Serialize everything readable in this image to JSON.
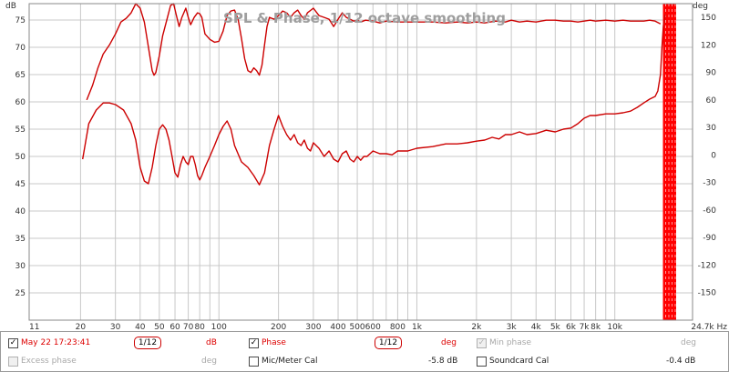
{
  "chart_data": {
    "type": "line",
    "title": "SPL & Phase, 1/12 octave smoothing",
    "y_unit_left": "dB",
    "y_unit_right": "deg",
    "x_unit": "Hz",
    "x_scale": "log",
    "xlim": [
      11,
      24700
    ],
    "ylim_left": [
      20,
      78
    ],
    "ylim_right": [
      -180,
      165
    ],
    "grid": true,
    "x_ticks": [
      {
        "v": 11,
        "label": "11"
      },
      {
        "v": 20,
        "label": "20"
      },
      {
        "v": 30,
        "label": "30"
      },
      {
        "v": 40,
        "label": "40"
      },
      {
        "v": 50,
        "label": "50"
      },
      {
        "v": 60,
        "label": "60"
      },
      {
        "v": 70,
        "label": "70"
      },
      {
        "v": 80,
        "label": "80"
      },
      {
        "v": 100,
        "label": "100"
      },
      {
        "v": 200,
        "label": "200"
      },
      {
        "v": 300,
        "label": "300"
      },
      {
        "v": 400,
        "label": "400"
      },
      {
        "v": 500,
        "label": "500"
      },
      {
        "v": 600,
        "label": "600"
      },
      {
        "v": 800,
        "label": "800"
      },
      {
        "v": 1000,
        "label": "1k"
      },
      {
        "v": 2000,
        "label": "2k"
      },
      {
        "v": 3000,
        "label": "3k"
      },
      {
        "v": 4000,
        "label": "4k"
      },
      {
        "v": 5000,
        "label": "5k"
      },
      {
        "v": 6000,
        "label": "6k"
      },
      {
        "v": 7000,
        "label": "7k"
      },
      {
        "v": 8000,
        "label": "8k"
      },
      {
        "v": 10000,
        "label": "10k"
      },
      {
        "v": 24700,
        "label": "24.7k Hz"
      }
    ],
    "y_ticks_left": [
      75,
      70,
      65,
      60,
      55,
      50,
      45,
      40,
      35,
      30,
      25
    ],
    "y_ticks_right": [
      150,
      120,
      90,
      60,
      30,
      0,
      -30,
      -60,
      -90,
      -120,
      -150
    ],
    "series": [
      {
        "name": "May 22 17:23:41",
        "axis": "left",
        "unit": "dB",
        "color": "#cc0000",
        "points": [
          [
            20.5,
            49.5
          ],
          [
            22,
            56
          ],
          [
            24,
            58.5
          ],
          [
            26,
            59.8
          ],
          [
            28,
            59.8
          ],
          [
            30,
            59.5
          ],
          [
            33,
            58.5
          ],
          [
            36,
            56
          ],
          [
            38,
            53
          ],
          [
            40,
            48
          ],
          [
            42,
            45.5
          ],
          [
            44,
            45
          ],
          [
            46,
            48
          ],
          [
            48,
            52
          ],
          [
            50,
            55
          ],
          [
            52,
            55.8
          ],
          [
            54,
            55
          ],
          [
            56,
            53
          ],
          [
            58,
            50
          ],
          [
            60,
            47
          ],
          [
            62,
            46.2
          ],
          [
            64,
            48.5
          ],
          [
            66,
            50
          ],
          [
            68,
            49
          ],
          [
            70,
            48.5
          ],
          [
            72,
            50
          ],
          [
            74,
            50
          ],
          [
            76,
            48.5
          ],
          [
            78,
            46.5
          ],
          [
            80,
            45.7
          ],
          [
            82,
            46.5
          ],
          [
            85,
            48
          ],
          [
            90,
            50
          ],
          [
            95,
            52
          ],
          [
            100,
            54
          ],
          [
            105,
            55.5
          ],
          [
            110,
            56.5
          ],
          [
            115,
            55
          ],
          [
            120,
            52
          ],
          [
            130,
            49
          ],
          [
            140,
            48
          ],
          [
            150,
            46.5
          ],
          [
            160,
            44.8
          ],
          [
            170,
            47
          ],
          [
            180,
            52
          ],
          [
            190,
            55
          ],
          [
            200,
            57.5
          ],
          [
            210,
            55.5
          ],
          [
            220,
            54
          ],
          [
            230,
            53
          ],
          [
            240,
            54
          ],
          [
            250,
            52.5
          ],
          [
            260,
            52
          ],
          [
            270,
            53
          ],
          [
            280,
            51.5
          ],
          [
            290,
            51
          ],
          [
            300,
            52.5
          ],
          [
            320,
            51.5
          ],
          [
            340,
            50
          ],
          [
            360,
            51
          ],
          [
            380,
            49.5
          ],
          [
            400,
            49
          ],
          [
            420,
            50.5
          ],
          [
            440,
            51
          ],
          [
            460,
            49.5
          ],
          [
            480,
            49
          ],
          [
            500,
            50
          ],
          [
            520,
            49.3
          ],
          [
            540,
            50
          ],
          [
            560,
            50
          ],
          [
            600,
            51
          ],
          [
            650,
            50.5
          ],
          [
            700,
            50.5
          ],
          [
            750,
            50.3
          ],
          [
            800,
            51
          ],
          [
            900,
            51
          ],
          [
            1000,
            51.5
          ],
          [
            1200,
            51.8
          ],
          [
            1400,
            52.3
          ],
          [
            1600,
            52.3
          ],
          [
            1800,
            52.5
          ],
          [
            2000,
            52.8
          ],
          [
            2200,
            53
          ],
          [
            2400,
            53.5
          ],
          [
            2600,
            53.2
          ],
          [
            2800,
            54
          ],
          [
            3000,
            54
          ],
          [
            3300,
            54.5
          ],
          [
            3600,
            54
          ],
          [
            4000,
            54.2
          ],
          [
            4500,
            54.8
          ],
          [
            5000,
            54.5
          ],
          [
            5500,
            55
          ],
          [
            6000,
            55.2
          ],
          [
            6500,
            56
          ],
          [
            7000,
            57
          ],
          [
            7500,
            57.5
          ],
          [
            8000,
            57.5
          ],
          [
            9000,
            57.8
          ],
          [
            10000,
            57.8
          ],
          [
            11000,
            58
          ],
          [
            12000,
            58.3
          ],
          [
            13000,
            59
          ],
          [
            14000,
            59.8
          ],
          [
            15000,
            60.5
          ],
          [
            16000,
            61
          ],
          [
            16500,
            62
          ],
          [
            17000,
            65
          ],
          [
            17300,
            70
          ],
          [
            17600,
            74
          ],
          [
            18000,
            76
          ]
        ]
      },
      {
        "name": "Phase",
        "axis": "right",
        "unit": "deg",
        "color": "#cc0000",
        "points": [
          [
            21.5,
            60
          ],
          [
            23,
            76
          ],
          [
            24.5,
            95
          ],
          [
            26,
            110
          ],
          [
            28,
            120
          ],
          [
            30,
            132
          ],
          [
            32,
            145
          ],
          [
            34,
            149
          ],
          [
            36,
            155
          ],
          [
            38,
            165
          ],
          [
            40,
            160
          ],
          [
            42,
            145
          ],
          [
            44,
            118
          ],
          [
            46,
            92
          ],
          [
            47,
            87
          ],
          [
            48,
            90
          ],
          [
            50,
            108
          ],
          [
            52,
            130
          ],
          [
            55,
            150
          ],
          [
            57,
            163
          ],
          [
            59,
            165
          ],
          [
            61,
            152
          ],
          [
            63,
            140
          ],
          [
            65,
            150
          ],
          [
            68,
            160
          ],
          [
            70,
            150
          ],
          [
            72,
            142
          ],
          [
            75,
            150
          ],
          [
            78,
            155
          ],
          [
            80,
            154
          ],
          [
            82,
            150
          ],
          [
            85,
            132
          ],
          [
            90,
            126
          ],
          [
            95,
            123
          ],
          [
            100,
            124
          ],
          [
            105,
            135
          ],
          [
            110,
            152
          ],
          [
            115,
            157
          ],
          [
            120,
            158
          ],
          [
            125,
            148
          ],
          [
            130,
            127
          ],
          [
            135,
            105
          ],
          [
            140,
            92
          ],
          [
            145,
            90
          ],
          [
            150,
            95
          ],
          [
            155,
            92
          ],
          [
            160,
            87
          ],
          [
            165,
            98
          ],
          [
            170,
            120
          ],
          [
            175,
            140
          ],
          [
            180,
            150
          ],
          [
            190,
            148
          ],
          [
            200,
            152
          ],
          [
            210,
            157
          ],
          [
            220,
            155
          ],
          [
            230,
            150
          ],
          [
            240,
            155
          ],
          [
            250,
            158
          ],
          [
            260,
            152
          ],
          [
            270,
            148
          ],
          [
            280,
            155
          ],
          [
            300,
            160
          ],
          [
            320,
            152
          ],
          [
            340,
            150
          ],
          [
            360,
            148
          ],
          [
            380,
            140
          ],
          [
            400,
            148
          ],
          [
            420,
            155
          ],
          [
            440,
            150
          ],
          [
            460,
            148
          ],
          [
            480,
            146
          ],
          [
            500,
            147
          ],
          [
            520,
            145
          ],
          [
            550,
            147
          ],
          [
            600,
            146
          ],
          [
            650,
            144
          ],
          [
            700,
            146
          ],
          [
            800,
            145
          ],
          [
            900,
            145
          ],
          [
            1000,
            145
          ],
          [
            1200,
            145
          ],
          [
            1400,
            144
          ],
          [
            1600,
            145
          ],
          [
            1800,
            144
          ],
          [
            2000,
            145
          ],
          [
            2200,
            144
          ],
          [
            2500,
            146
          ],
          [
            2800,
            145
          ],
          [
            3000,
            147
          ],
          [
            3300,
            145
          ],
          [
            3600,
            146
          ],
          [
            4000,
            145
          ],
          [
            4500,
            147
          ],
          [
            5000,
            147
          ],
          [
            5500,
            146
          ],
          [
            6000,
            146
          ],
          [
            6500,
            145
          ],
          [
            7000,
            146
          ],
          [
            7500,
            147
          ],
          [
            8000,
            146
          ],
          [
            9000,
            147
          ],
          [
            10000,
            146
          ],
          [
            11000,
            147
          ],
          [
            12000,
            146
          ],
          [
            13000,
            146
          ],
          [
            14000,
            146
          ],
          [
            15000,
            147
          ],
          [
            16000,
            146
          ],
          [
            17000,
            143
          ]
        ]
      }
    ],
    "annotations": [
      {
        "type": "shaded-band",
        "x_from": 17500,
        "x_to": 24700,
        "color": "#ff0000"
      }
    ]
  },
  "panel": {
    "row1": {
      "spl_checked": "✓",
      "spl_name": "May 22 17:23:41",
      "spl_smoothing": "1/12",
      "spl_unit": "dB",
      "phase_checked": "✓",
      "phase_name": "Phase",
      "phase_smoothing": "1/12",
      "phase_unit": "deg",
      "minphase_checked": "✓",
      "minphase_name": "Min phase",
      "minphase_unit": "deg"
    },
    "row2": {
      "excess_checked": "",
      "excess_name": "Excess phase",
      "excess_unit": "deg",
      "micmeter_checked": "",
      "micmeter_name": "Mic/Meter Cal",
      "micmeter_value": "-5.8 dB",
      "soundcard_checked": "",
      "soundcard_name": "Soundcard Cal",
      "soundcard_value": "-0.4 dB"
    }
  },
  "colors": {
    "trace": "#cc0000",
    "band": "#ff0000",
    "grid": "#c8c8c8",
    "background": "#ffffff"
  }
}
